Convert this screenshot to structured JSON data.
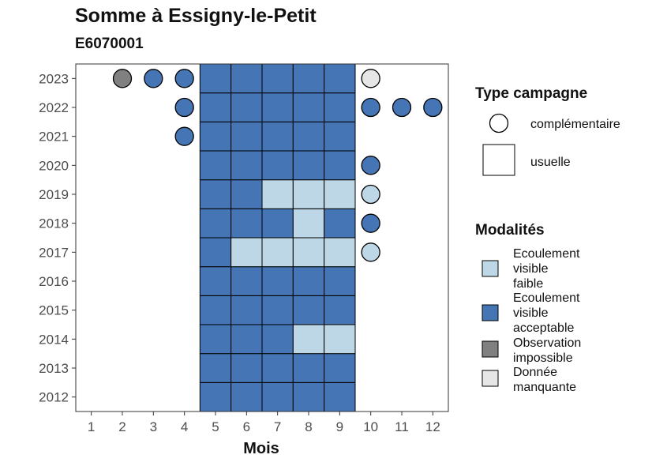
{
  "chart_data": {
    "type": "heatmap",
    "title": "Somme à Essigny-le-Petit",
    "subtitle": "E6070001",
    "xlabel": "Mois",
    "ylabel": "",
    "x_ticks": [
      "1",
      "2",
      "3",
      "4",
      "5",
      "6",
      "7",
      "8",
      "9",
      "10",
      "11",
      "12"
    ],
    "y_ticks": [
      "2012",
      "2013",
      "2014",
      "2015",
      "2016",
      "2017",
      "2018",
      "2019",
      "2020",
      "2021",
      "2022",
      "2023"
    ],
    "colors": {
      "Ecoulement visible faible": "#bdd7e7",
      "Ecoulement visible acceptable": "#4575b4",
      "Observation impossible": "#808080",
      "Donnée manquante": "#e6e6e6"
    },
    "usuelle": [
      {
        "year": 2012,
        "month": 5,
        "modalite": "Ecoulement visible acceptable"
      },
      {
        "year": 2012,
        "month": 6,
        "modalite": "Ecoulement visible acceptable"
      },
      {
        "year": 2012,
        "month": 7,
        "modalite": "Ecoulement visible acceptable"
      },
      {
        "year": 2012,
        "month": 8,
        "modalite": "Ecoulement visible acceptable"
      },
      {
        "year": 2012,
        "month": 9,
        "modalite": "Ecoulement visible acceptable"
      },
      {
        "year": 2013,
        "month": 5,
        "modalite": "Ecoulement visible acceptable"
      },
      {
        "year": 2013,
        "month": 6,
        "modalite": "Ecoulement visible acceptable"
      },
      {
        "year": 2013,
        "month": 7,
        "modalite": "Ecoulement visible acceptable"
      },
      {
        "year": 2013,
        "month": 8,
        "modalite": "Ecoulement visible acceptable"
      },
      {
        "year": 2013,
        "month": 9,
        "modalite": "Ecoulement visible acceptable"
      },
      {
        "year": 2014,
        "month": 5,
        "modalite": "Ecoulement visible acceptable"
      },
      {
        "year": 2014,
        "month": 6,
        "modalite": "Ecoulement visible acceptable"
      },
      {
        "year": 2014,
        "month": 7,
        "modalite": "Ecoulement visible acceptable"
      },
      {
        "year": 2014,
        "month": 8,
        "modalite": "Ecoulement visible faible"
      },
      {
        "year": 2014,
        "month": 9,
        "modalite": "Ecoulement visible faible"
      },
      {
        "year": 2015,
        "month": 5,
        "modalite": "Ecoulement visible acceptable"
      },
      {
        "year": 2015,
        "month": 6,
        "modalite": "Ecoulement visible acceptable"
      },
      {
        "year": 2015,
        "month": 7,
        "modalite": "Ecoulement visible acceptable"
      },
      {
        "year": 2015,
        "month": 8,
        "modalite": "Ecoulement visible acceptable"
      },
      {
        "year": 2015,
        "month": 9,
        "modalite": "Ecoulement visible acceptable"
      },
      {
        "year": 2016,
        "month": 5,
        "modalite": "Ecoulement visible acceptable"
      },
      {
        "year": 2016,
        "month": 6,
        "modalite": "Ecoulement visible acceptable"
      },
      {
        "year": 2016,
        "month": 7,
        "modalite": "Ecoulement visible acceptable"
      },
      {
        "year": 2016,
        "month": 8,
        "modalite": "Ecoulement visible acceptable"
      },
      {
        "year": 2016,
        "month": 9,
        "modalite": "Ecoulement visible acceptable"
      },
      {
        "year": 2017,
        "month": 5,
        "modalite": "Ecoulement visible acceptable"
      },
      {
        "year": 2017,
        "month": 6,
        "modalite": "Ecoulement visible faible"
      },
      {
        "year": 2017,
        "month": 7,
        "modalite": "Ecoulement visible faible"
      },
      {
        "year": 2017,
        "month": 8,
        "modalite": "Ecoulement visible faible"
      },
      {
        "year": 2017,
        "month": 9,
        "modalite": "Ecoulement visible faible"
      },
      {
        "year": 2018,
        "month": 5,
        "modalite": "Ecoulement visible acceptable"
      },
      {
        "year": 2018,
        "month": 6,
        "modalite": "Ecoulement visible acceptable"
      },
      {
        "year": 2018,
        "month": 7,
        "modalite": "Ecoulement visible acceptable"
      },
      {
        "year": 2018,
        "month": 8,
        "modalite": "Ecoulement visible faible"
      },
      {
        "year": 2018,
        "month": 9,
        "modalite": "Ecoulement visible acceptable"
      },
      {
        "year": 2019,
        "month": 5,
        "modalite": "Ecoulement visible acceptable"
      },
      {
        "year": 2019,
        "month": 6,
        "modalite": "Ecoulement visible acceptable"
      },
      {
        "year": 2019,
        "month": 7,
        "modalite": "Ecoulement visible faible"
      },
      {
        "year": 2019,
        "month": 8,
        "modalite": "Ecoulement visible faible"
      },
      {
        "year": 2019,
        "month": 9,
        "modalite": "Ecoulement visible faible"
      },
      {
        "year": 2020,
        "month": 5,
        "modalite": "Ecoulement visible acceptable"
      },
      {
        "year": 2020,
        "month": 6,
        "modalite": "Ecoulement visible acceptable"
      },
      {
        "year": 2020,
        "month": 7,
        "modalite": "Ecoulement visible acceptable"
      },
      {
        "year": 2020,
        "month": 8,
        "modalite": "Ecoulement visible acceptable"
      },
      {
        "year": 2020,
        "month": 9,
        "modalite": "Ecoulement visible acceptable"
      },
      {
        "year": 2021,
        "month": 5,
        "modalite": "Ecoulement visible acceptable"
      },
      {
        "year": 2021,
        "month": 6,
        "modalite": "Ecoulement visible acceptable"
      },
      {
        "year": 2021,
        "month": 7,
        "modalite": "Ecoulement visible acceptable"
      },
      {
        "year": 2021,
        "month": 8,
        "modalite": "Ecoulement visible acceptable"
      },
      {
        "year": 2021,
        "month": 9,
        "modalite": "Ecoulement visible acceptable"
      },
      {
        "year": 2022,
        "month": 5,
        "modalite": "Ecoulement visible acceptable"
      },
      {
        "year": 2022,
        "month": 6,
        "modalite": "Ecoulement visible acceptable"
      },
      {
        "year": 2022,
        "month": 7,
        "modalite": "Ecoulement visible acceptable"
      },
      {
        "year": 2022,
        "month": 8,
        "modalite": "Ecoulement visible acceptable"
      },
      {
        "year": 2022,
        "month": 9,
        "modalite": "Ecoulement visible acceptable"
      },
      {
        "year": 2023,
        "month": 5,
        "modalite": "Ecoulement visible acceptable"
      },
      {
        "year": 2023,
        "month": 6,
        "modalite": "Ecoulement visible acceptable"
      },
      {
        "year": 2023,
        "month": 7,
        "modalite": "Ecoulement visible acceptable"
      },
      {
        "year": 2023,
        "month": 8,
        "modalite": "Ecoulement visible acceptable"
      },
      {
        "year": 2023,
        "month": 9,
        "modalite": "Ecoulement visible acceptable"
      }
    ],
    "complementaire": [
      {
        "year": 2023,
        "month": 2,
        "modalite": "Observation impossible"
      },
      {
        "year": 2023,
        "month": 3,
        "modalite": "Ecoulement visible acceptable"
      },
      {
        "year": 2023,
        "month": 4,
        "modalite": "Ecoulement visible acceptable"
      },
      {
        "year": 2023,
        "month": 10,
        "modalite": "Donnée manquante"
      },
      {
        "year": 2022,
        "month": 4,
        "modalite": "Ecoulement visible acceptable"
      },
      {
        "year": 2022,
        "month": 10,
        "modalite": "Ecoulement visible acceptable"
      },
      {
        "year": 2022,
        "month": 11,
        "modalite": "Ecoulement visible acceptable"
      },
      {
        "year": 2022,
        "month": 12,
        "modalite": "Ecoulement visible acceptable"
      },
      {
        "year": 2021,
        "month": 4,
        "modalite": "Ecoulement visible acceptable"
      },
      {
        "year": 2020,
        "month": 10,
        "modalite": "Ecoulement visible acceptable"
      },
      {
        "year": 2019,
        "month": 10,
        "modalite": "Ecoulement visible faible"
      },
      {
        "year": 2018,
        "month": 10,
        "modalite": "Ecoulement visible acceptable"
      },
      {
        "year": 2017,
        "month": 10,
        "modalite": "Ecoulement visible faible"
      }
    ],
    "legend": {
      "type_title": "Type campagne",
      "type_items": [
        "complémentaire",
        "usuelle"
      ],
      "modalite_title": "Modalités",
      "modalite_items": [
        {
          "label": "Ecoulement visible faible",
          "lines": [
            "Ecoulement",
            "visible",
            "faible"
          ]
        },
        {
          "label": "Ecoulement visible acceptable",
          "lines": [
            "Ecoulement",
            "visible",
            "acceptable"
          ]
        },
        {
          "label": "Observation impossible",
          "lines": [
            "Observation",
            "impossible"
          ]
        },
        {
          "label": "Donnée manquante",
          "lines": [
            "Donnée",
            "manquante"
          ]
        }
      ]
    }
  }
}
